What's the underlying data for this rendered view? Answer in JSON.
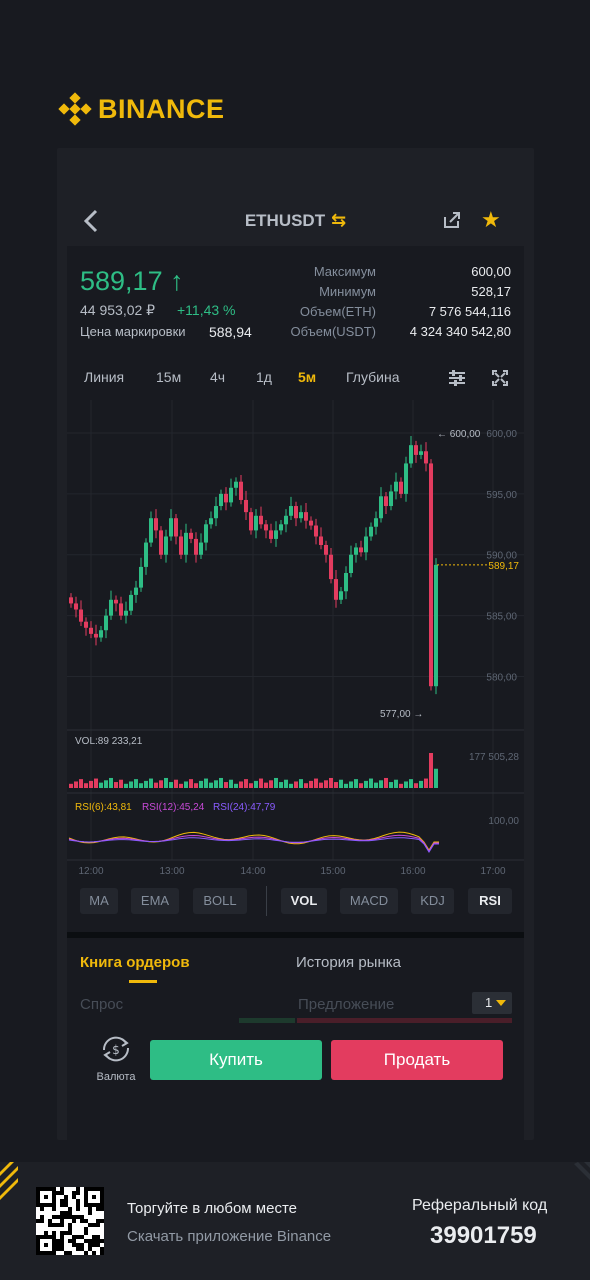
{
  "brand": {
    "name": "BINANCE",
    "color": "#f0b90b"
  },
  "header": {
    "pair": "ETHUSDT",
    "back_icon": "chevron-left-icon",
    "swap_icon": "swap-arrows-icon",
    "share_icon": "share-icon",
    "favorite_icon": "star-icon"
  },
  "price": {
    "last": "589,17",
    "arrow": "↑",
    "fiat": "44 953,02 ₽",
    "change": "+11,43 %",
    "mark_label": "Цена маркировки",
    "mark_value": "588,94"
  },
  "stats": [
    {
      "label": "Максимум",
      "value": "600,00"
    },
    {
      "label": "Минимум",
      "value": "528,17"
    },
    {
      "label": "Объем(ETH)",
      "value": "7 576 544,116"
    },
    {
      "label": "Объем(USDT)",
      "value": "4 324 340 542,80"
    }
  ],
  "intervals": [
    "Линия",
    "15м",
    "4ч",
    "1д",
    "5м",
    "Глубина"
  ],
  "active_interval": "5м",
  "chart": {
    "max_label": "600,00",
    "min_label": "577,00",
    "last_label": "589,17",
    "y_ticks": [
      "600,00",
      "595,00",
      "590,00",
      "585,00",
      "580,00"
    ],
    "vol_label": "VOL:89 233,21",
    "vol_tick": "177 505,28",
    "rsi6": "RSI(6):43,81",
    "rsi12": "RSI(12):45,24",
    "rsi24": "RSI(24):47,79",
    "rsi_tick": "100,00",
    "x_ticks": [
      "12:00",
      "13:00",
      "14:00",
      "15:00",
      "16:00",
      "17:00"
    ],
    "colors": {
      "up": "#2ebd85",
      "down": "#e33c5f",
      "rsi6": "#f0b90b",
      "rsi12": "#c84ad8",
      "rsi24": "#8a5cff"
    }
  },
  "indicators": [
    "MA",
    "EMA",
    "BOLL",
    "VOL",
    "MACD",
    "KDJ",
    "RSI"
  ],
  "book": {
    "tab_orders": "Книга ордеров",
    "tab_history": "История рынка",
    "bid": "Спрос",
    "ask": "Предложение",
    "depth": "1"
  },
  "actions": {
    "currency": "Валюта",
    "buy": "Купить",
    "sell": "Продать"
  },
  "footer": {
    "title": "Торгуйте в любом месте",
    "subtitle": "Скачать приложение Binance",
    "ref_label": "Реферальный код",
    "ref_code": "39901759"
  }
}
